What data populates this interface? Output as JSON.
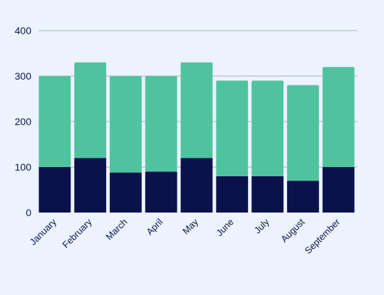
{
  "chart_data": {
    "type": "bar",
    "stacked": true,
    "categories": [
      "January",
      "February",
      "March",
      "April",
      "May",
      "June",
      "July",
      "August",
      "September"
    ],
    "series": [
      {
        "values": [
          100,
          120,
          88,
          90,
          120,
          80,
          80,
          70,
          100
        ],
        "color": "#0B124B"
      },
      {
        "values": [
          200,
          210,
          212,
          210,
          210,
          210,
          210,
          210,
          220
        ],
        "color": "#4FC39D"
      }
    ],
    "title": "",
    "xlabel": "",
    "ylabel": "",
    "ylim": [
      0,
      400
    ],
    "yticks": [
      0,
      100,
      200,
      300,
      400
    ],
    "grid": true,
    "legend": false
  },
  "colors": {
    "background": "#ECF2FE",
    "grid": "#A9B4CC",
    "text": "#0B1846"
  }
}
